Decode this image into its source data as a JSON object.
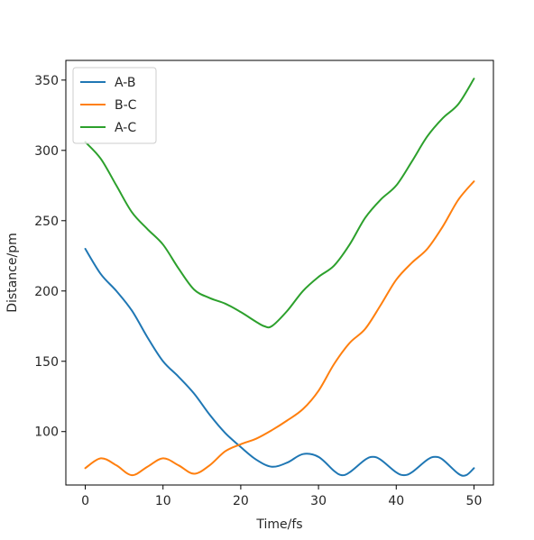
{
  "chart_data": {
    "type": "line",
    "title": "",
    "xlabel": "Time/fs",
    "ylabel": "Distance/pm",
    "xlim": [
      -2.5,
      52.5
    ],
    "ylim": [
      62,
      364
    ],
    "xticks": [
      0,
      10,
      20,
      30,
      40,
      50
    ],
    "yticks": [
      100,
      150,
      200,
      250,
      300,
      350
    ],
    "grid": false,
    "legend_position": "top-left",
    "series": [
      {
        "name": "A-B",
        "color": "#1f77b4",
        "x": [
          0,
          2,
          4,
          6,
          8,
          10,
          12,
          14,
          16,
          18,
          20,
          22,
          24,
          26,
          28,
          30,
          32,
          33,
          34,
          36,
          37,
          38,
          40,
          41,
          42,
          44,
          45,
          46,
          48,
          49,
          50
        ],
        "y": [
          230,
          212,
          200,
          186,
          167,
          150,
          139,
          127,
          112,
          99,
          89,
          80,
          75,
          78,
          84,
          82,
          72,
          69,
          71,
          80,
          82,
          80,
          71,
          69,
          71,
          80,
          82,
          80,
          70,
          69,
          74
        ]
      },
      {
        "name": "B-C",
        "color": "#ff7f0e",
        "x": [
          0,
          2,
          4,
          6,
          8,
          10,
          12,
          14,
          16,
          18,
          20,
          22,
          24,
          26,
          28,
          30,
          32,
          34,
          36,
          38,
          40,
          42,
          44,
          46,
          48,
          50
        ],
        "y": [
          74,
          81,
          76,
          69,
          75,
          81,
          76,
          70,
          76,
          86,
          91,
          95,
          101,
          108,
          116,
          129,
          148,
          163,
          173,
          190,
          208,
          220,
          230,
          246,
          265,
          278
        ]
      },
      {
        "name": "A-C",
        "color": "#2ca02c",
        "x": [
          0,
          2,
          4,
          6,
          8,
          10,
          12,
          14,
          16,
          18,
          20,
          22,
          23,
          24,
          26,
          28,
          30,
          32,
          34,
          36,
          38,
          40,
          42,
          44,
          46,
          48,
          50
        ],
        "y": [
          306,
          294,
          275,
          256,
          244,
          233,
          216,
          201,
          195,
          191,
          185,
          178,
          175,
          175,
          186,
          200,
          210,
          218,
          233,
          252,
          265,
          275,
          292,
          310,
          323,
          333,
          351
        ]
      }
    ]
  }
}
